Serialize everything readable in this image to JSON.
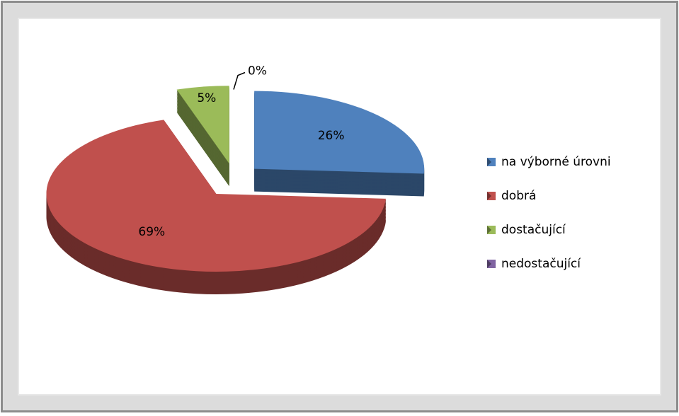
{
  "chart_data": {
    "type": "pie",
    "categories": [
      "na výborné úrovni",
      "dobrá",
      "dostačující",
      "nedostačující"
    ],
    "values": [
      26,
      69,
      5,
      0
    ],
    "value_labels": [
      "26%",
      "69%",
      "5%",
      "0%"
    ],
    "colors": [
      "#4f81bd",
      "#c0504d",
      "#9bbb59",
      "#8064a2"
    ],
    "legend": "right"
  }
}
